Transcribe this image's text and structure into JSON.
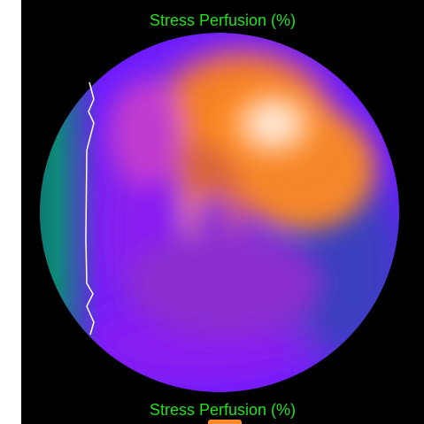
{
  "viewer": {
    "title_top": "Stress Perfusion (%)",
    "title_bottom": "Stress Perfusion (%)",
    "map_name": "stress-perfusion-polar-map",
    "colors": {
      "background": "#000000",
      "label": "#22e01c",
      "low": "#5a1cff",
      "high": "#ffffff",
      "mid": "#ff8a1f",
      "edge_teal": "#0e7c6a",
      "defect_outline": "#ffffff"
    }
  }
}
